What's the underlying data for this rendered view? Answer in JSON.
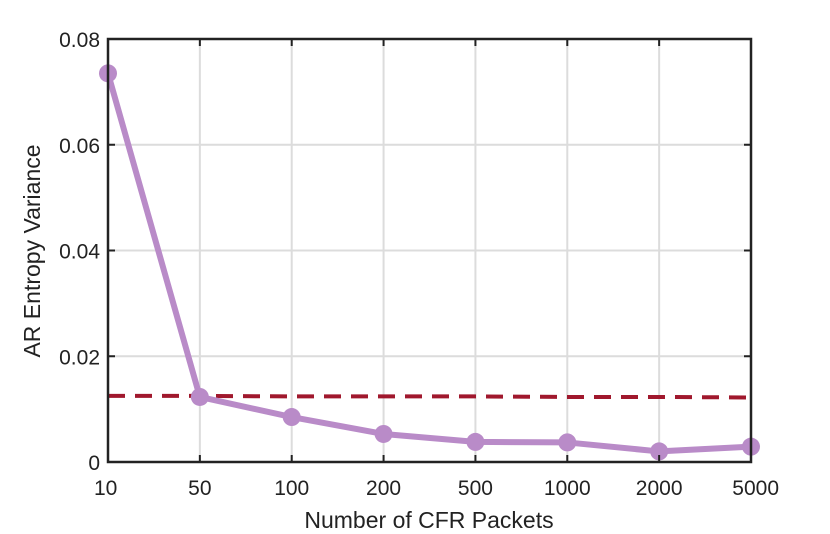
{
  "chart_data": {
    "type": "line",
    "xlabel": "Number of CFR Packets",
    "ylabel": "AR Entropy Variance",
    "categories": [
      "10",
      "50",
      "100",
      "200",
      "500",
      "1000",
      "2000",
      "5000"
    ],
    "ylim": [
      0,
      0.08
    ],
    "yticks": [
      "0",
      "0.02",
      "0.04",
      "0.06",
      "0.08"
    ],
    "ytick_values": [
      0,
      0.02,
      0.04,
      0.06,
      0.08
    ],
    "grid": true,
    "series": [
      {
        "values": [
          0.0735,
          0.0123,
          0.0085,
          0.0053,
          0.0038,
          0.0037,
          0.002,
          0.0029
        ],
        "color": "#b98bc8",
        "style": "solid",
        "markers": true
      },
      {
        "values": [
          0.0125,
          0.0125,
          0.0124,
          0.0124,
          0.0124,
          0.0123,
          0.0123,
          0.0122
        ],
        "color": "#a0182d",
        "style": "dashed",
        "markers": false
      }
    ]
  }
}
